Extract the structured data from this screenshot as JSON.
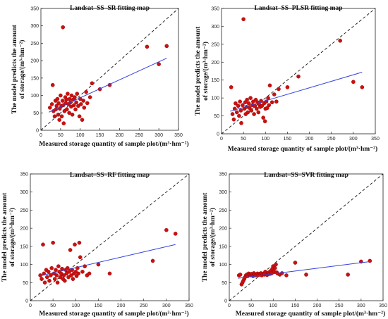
{
  "chart_data": [
    {
      "type": "scatter",
      "title": "Landsat–SS–SR fitting map",
      "xlabel": "Measured storage quantity of sample plot/(m³·hm⁻²)",
      "ylabel_line1": "The model predicts the amount",
      "ylabel_line2": "of storage/(m³·hm⁻²)",
      "xlim": [
        0,
        350
      ],
      "ylim": [
        0,
        350
      ],
      "xticks": [
        "0",
        "50",
        "100",
        "150",
        "200",
        "250",
        "300",
        "350"
      ],
      "yticks": [
        "0",
        "50",
        "100",
        "150",
        "200",
        "250",
        "300",
        "350"
      ],
      "identity_line": true,
      "fit_line": {
        "x": [
          20,
          320
        ],
        "y": [
          52,
          207
        ]
      },
      "points": [
        [
          23,
          65
        ],
        [
          28,
          75
        ],
        [
          30,
          130
        ],
        [
          32,
          55
        ],
        [
          35,
          40
        ],
        [
          37,
          85
        ],
        [
          38,
          60
        ],
        [
          40,
          70
        ],
        [
          42,
          90
        ],
        [
          44,
          45
        ],
        [
          45,
          78
        ],
        [
          47,
          30
        ],
        [
          48,
          62
        ],
        [
          50,
          100
        ],
        [
          52,
          70
        ],
        [
          53,
          40
        ],
        [
          55,
          85
        ],
        [
          56,
          296
        ],
        [
          57,
          72
        ],
        [
          58,
          20
        ],
        [
          60,
          55
        ],
        [
          62,
          95
        ],
        [
          63,
          78
        ],
        [
          65,
          88
        ],
        [
          66,
          60
        ],
        [
          68,
          105
        ],
        [
          70,
          75
        ],
        [
          72,
          50
        ],
        [
          73,
          90
        ],
        [
          75,
          80
        ],
        [
          77,
          68
        ],
        [
          78,
          100
        ],
        [
          80,
          45
        ],
        [
          82,
          88
        ],
        [
          84,
          72
        ],
        [
          86,
          95
        ],
        [
          88,
          60
        ],
        [
          90,
          80
        ],
        [
          92,
          105
        ],
        [
          95,
          70
        ],
        [
          98,
          40
        ],
        [
          100,
          90
        ],
        [
          102,
          75
        ],
        [
          105,
          30
        ],
        [
          108,
          85
        ],
        [
          110,
          65
        ],
        [
          115,
          110
        ],
        [
          118,
          78
        ],
        [
          125,
          95
        ],
        [
          130,
          135
        ],
        [
          150,
          118
        ],
        [
          175,
          130
        ],
        [
          270,
          240
        ],
        [
          300,
          190
        ],
        [
          320,
          242
        ]
      ]
    },
    {
      "type": "scatter",
      "title": "Landsat–SS–PLSR fitting map",
      "xlabel": "Measured storage quantity of sample plot/(m³·hm⁻²)",
      "ylabel_line1": "The model predicts the amount",
      "ylabel_line2": "of storage/(m³·hm⁻²)",
      "xlim": [
        0,
        350
      ],
      "ylim": [
        0,
        350
      ],
      "xticks": [
        "0",
        "50",
        "100",
        "150",
        "200",
        "250",
        "300",
        "350"
      ],
      "yticks": [
        "0",
        "50",
        "100",
        "150",
        "200",
        "250",
        "300",
        "350"
      ],
      "identity_line": true,
      "fit_line": {
        "x": [
          20,
          320
        ],
        "y": [
          63,
          172
        ]
      },
      "points": [
        [
          22,
          130
        ],
        [
          25,
          55
        ],
        [
          28,
          40
        ],
        [
          30,
          70
        ],
        [
          32,
          85
        ],
        [
          35,
          60
        ],
        [
          38,
          78
        ],
        [
          40,
          50
        ],
        [
          42,
          90
        ],
        [
          44,
          65
        ],
        [
          45,
          30
        ],
        [
          48,
          80
        ],
        [
          50,
          320
        ],
        [
          52,
          70
        ],
        [
          54,
          88
        ],
        [
          55,
          55
        ],
        [
          57,
          75
        ],
        [
          58,
          95
        ],
        [
          60,
          60
        ],
        [
          62,
          85
        ],
        [
          64,
          72
        ],
        [
          66,
          100
        ],
        [
          68,
          65
        ],
        [
          70,
          80
        ],
        [
          72,
          90
        ],
        [
          74,
          55
        ],
        [
          76,
          78
        ],
        [
          78,
          95
        ],
        [
          80,
          70
        ],
        [
          82,
          88
        ],
        [
          84,
          60
        ],
        [
          86,
          82
        ],
        [
          88,
          75
        ],
        [
          90,
          92
        ],
        [
          92,
          78
        ],
        [
          95,
          45
        ],
        [
          97,
          85
        ],
        [
          99,
          35
        ],
        [
          100,
          70
        ],
        [
          102,
          90
        ],
        [
          104,
          72
        ],
        [
          106,
          100
        ],
        [
          108,
          80
        ],
        [
          110,
          135
        ],
        [
          115,
          88
        ],
        [
          120,
          110
        ],
        [
          125,
          90
        ],
        [
          130,
          125
        ],
        [
          150,
          130
        ],
        [
          175,
          160
        ],
        [
          270,
          260
        ],
        [
          300,
          145
        ],
        [
          320,
          130
        ]
      ]
    },
    {
      "type": "scatter",
      "title": "Landsat–SS–RF fitting map",
      "xlabel": "Measured storage quantity of sample plot/(m³·hm⁻²)",
      "ylabel_line1": "The model predicts the amount",
      "ylabel_line2": "of storage/(m³·hm⁻²)",
      "xlim": [
        0,
        350
      ],
      "ylim": [
        0,
        350
      ],
      "xticks": [
        "0",
        "50",
        "100",
        "150",
        "200",
        "250",
        "300",
        "350"
      ],
      "yticks": [
        "0",
        "50",
        "100",
        "150",
        "200",
        "250",
        "300",
        "350"
      ],
      "identity_line": true,
      "fit_line": {
        "x": [
          20,
          320
        ],
        "y": [
          68,
          155
        ]
      },
      "points": [
        [
          22,
          70
        ],
        [
          25,
          60
        ],
        [
          28,
          155
        ],
        [
          30,
          75
        ],
        [
          32,
          50
        ],
        [
          35,
          85
        ],
        [
          37,
          65
        ],
        [
          40,
          80
        ],
        [
          42,
          55
        ],
        [
          45,
          70
        ],
        [
          47,
          90
        ],
        [
          50,
          160
        ],
        [
          52,
          75
        ],
        [
          54,
          60
        ],
        [
          56,
          85
        ],
        [
          58,
          70
        ],
        [
          60,
          50
        ],
        [
          62,
          95
        ],
        [
          64,
          80
        ],
        [
          66,
          65
        ],
        [
          68,
          75
        ],
        [
          70,
          88
        ],
        [
          72,
          60
        ],
        [
          74,
          70
        ],
        [
          76,
          55
        ],
        [
          78,
          85
        ],
        [
          80,
          75
        ],
        [
          82,
          90
        ],
        [
          84,
          65
        ],
        [
          86,
          80
        ],
        [
          88,
          140
        ],
        [
          90,
          70
        ],
        [
          92,
          85
        ],
        [
          94,
          60
        ],
        [
          96,
          75
        ],
        [
          98,
          155
        ],
        [
          100,
          80
        ],
        [
          102,
          68
        ],
        [
          104,
          90
        ],
        [
          106,
          75
        ],
        [
          108,
          160
        ],
        [
          110,
          120
        ],
        [
          115,
          80
        ],
        [
          120,
          95
        ],
        [
          125,
          70
        ],
        [
          130,
          75
        ],
        [
          150,
          100
        ],
        [
          175,
          75
        ],
        [
          270,
          110
        ],
        [
          300,
          195
        ],
        [
          320,
          185
        ]
      ]
    },
    {
      "type": "scatter",
      "title": "Landsat–SS–SVR fitting map",
      "xlabel": "Measured storage quantity of sample plot/(m³·hm⁻²)",
      "ylabel_line1": "The model predicts the amount",
      "ylabel_line2": "of storage/(m³·hm⁻²)",
      "xlim": [
        0,
        350
      ],
      "ylim": [
        0,
        350
      ],
      "xticks": [
        "0",
        "50",
        "100",
        "150",
        "200",
        "250",
        "300",
        "350"
      ],
      "yticks": [
        "0",
        "50",
        "100",
        "150",
        "200",
        "250",
        "300",
        "350"
      ],
      "identity_line": true,
      "fit_line": {
        "x": [
          20,
          320
        ],
        "y": [
          62,
          108
        ]
      },
      "points": [
        [
          22,
          70
        ],
        [
          25,
          72
        ],
        [
          28,
          45
        ],
        [
          30,
          50
        ],
        [
          32,
          55
        ],
        [
          34,
          60
        ],
        [
          36,
          65
        ],
        [
          38,
          70
        ],
        [
          40,
          72
        ],
        [
          42,
          68
        ],
        [
          44,
          75
        ],
        [
          46,
          72
        ],
        [
          48,
          70
        ],
        [
          50,
          74
        ],
        [
          52,
          72
        ],
        [
          54,
          68
        ],
        [
          56,
          76
        ],
        [
          58,
          72
        ],
        [
          60,
          70
        ],
        [
          62,
          73
        ],
        [
          64,
          75
        ],
        [
          66,
          71
        ],
        [
          68,
          74
        ],
        [
          70,
          72
        ],
        [
          72,
          76
        ],
        [
          74,
          70
        ],
        [
          76,
          73
        ],
        [
          78,
          75
        ],
        [
          80,
          72
        ],
        [
          82,
          80
        ],
        [
          84,
          74
        ],
        [
          86,
          71
        ],
        [
          88,
          76
        ],
        [
          90,
          78
        ],
        [
          92,
          74
        ],
        [
          94,
          82
        ],
        [
          96,
          75
        ],
        [
          98,
          88
        ],
        [
          100,
          95
        ],
        [
          102,
          80
        ],
        [
          104,
          90
        ],
        [
          106,
          100
        ],
        [
          108,
          78
        ],
        [
          110,
          75
        ],
        [
          115,
          72
        ],
        [
          120,
          76
        ],
        [
          130,
          70
        ],
        [
          150,
          105
        ],
        [
          175,
          72
        ],
        [
          270,
          72
        ],
        [
          300,
          108
        ],
        [
          320,
          110
        ]
      ]
    }
  ]
}
